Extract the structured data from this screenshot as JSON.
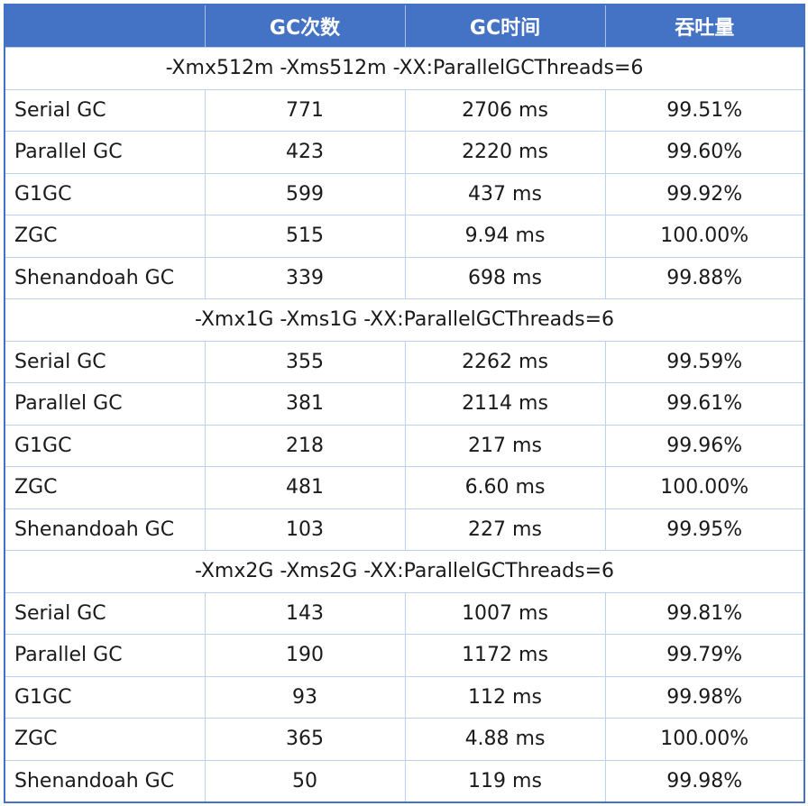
{
  "header": [
    "",
    "GC次数",
    "GC时间",
    "吞吐量"
  ],
  "groups": [
    {
      "title": "-Xmx512m -Xms512m -XX:ParallelGCThreads=6",
      "rows": [
        [
          "Serial GC",
          "771",
          "2706 ms",
          "99.51%"
        ],
        [
          "Parallel GC",
          "423",
          "2220 ms",
          "99.60%"
        ],
        [
          "G1GC",
          "599",
          "437 ms",
          "99.92%"
        ],
        [
          "ZGC",
          "515",
          "9.94 ms",
          "100.00%"
        ],
        [
          "Shenandoah GC",
          "339",
          "698 ms",
          "99.88%"
        ]
      ]
    },
    {
      "title": "-Xmx1G -Xms1G -XX:ParallelGCThreads=6",
      "rows": [
        [
          "Serial GC",
          "355",
          "2262 ms",
          "99.59%"
        ],
        [
          "Parallel GC",
          "381",
          "2114 ms",
          "99.61%"
        ],
        [
          "G1GC",
          "218",
          "217 ms",
          "99.96%"
        ],
        [
          "ZGC",
          "481",
          "6.60 ms",
          "100.00%"
        ],
        [
          "Shenandoah GC",
          "103",
          "227 ms",
          "99.95%"
        ]
      ]
    },
    {
      "title": "-Xmx2G -Xms2G -XX:ParallelGCThreads=6",
      "rows": [
        [
          "Serial GC",
          "143",
          "1007 ms",
          "99.81%"
        ],
        [
          "Parallel GC",
          "190",
          "1172 ms",
          "99.79%"
        ],
        [
          "G1GC",
          "93",
          "112 ms",
          "99.98%"
        ],
        [
          "ZGC",
          "365",
          "4.88 ms",
          "100.00%"
        ],
        [
          "Shenandoah GC",
          "50",
          "119 ms",
          "99.98%"
        ]
      ]
    }
  ]
}
